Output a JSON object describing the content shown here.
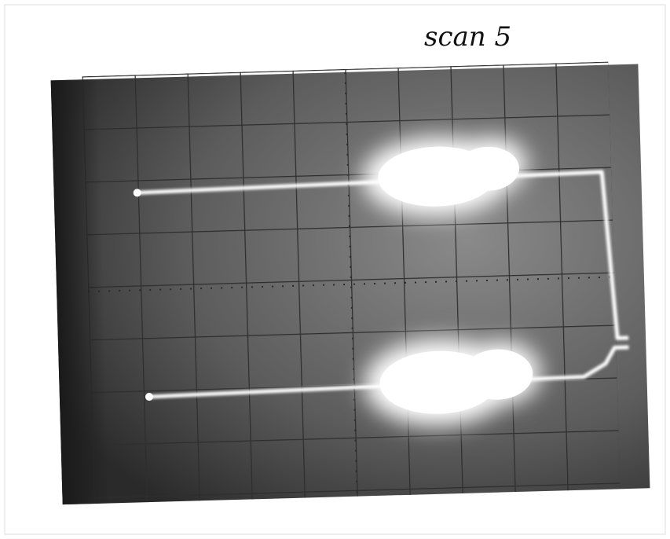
{
  "annotation": "scan 5"
}
